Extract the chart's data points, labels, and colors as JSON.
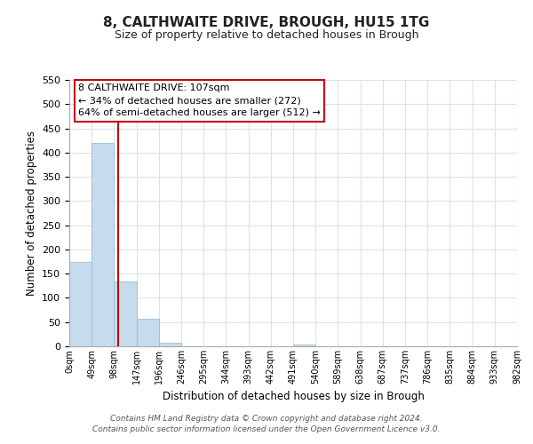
{
  "title": "8, CALTHWAITE DRIVE, BROUGH, HU15 1TG",
  "subtitle": "Size of property relative to detached houses in Brough",
  "xlabel": "Distribution of detached houses by size in Brough",
  "ylabel": "Number of detached properties",
  "bar_values": [
    175,
    420,
    133,
    57,
    8,
    0,
    0,
    0,
    0,
    0,
    3,
    0,
    0,
    0,
    0,
    0,
    0,
    0,
    0,
    0
  ],
  "bar_color": "#c6dcec",
  "bar_edge_color": "#9abcd4",
  "tick_labels": [
    "0sqm",
    "49sqm",
    "98sqm",
    "147sqm",
    "196sqm",
    "246sqm",
    "295sqm",
    "344sqm",
    "393sqm",
    "442sqm",
    "491sqm",
    "540sqm",
    "589sqm",
    "638sqm",
    "687sqm",
    "737sqm",
    "786sqm",
    "835sqm",
    "884sqm",
    "933sqm",
    "982sqm"
  ],
  "ylim": [
    0,
    550
  ],
  "yticks": [
    0,
    50,
    100,
    150,
    200,
    250,
    300,
    350,
    400,
    450,
    500,
    550
  ],
  "property_line_x": 107,
  "property_line_color": "#cc0000",
  "annotation_title": "8 CALTHWAITE DRIVE: 107sqm",
  "annotation_line1": "← 34% of detached houses are smaller (272)",
  "annotation_line2": "64% of semi-detached houses are larger (512) →",
  "footer_line1": "Contains HM Land Registry data © Crown copyright and database right 2024.",
  "footer_line2": "Contains public sector information licensed under the Open Government Licence v3.0.",
  "background_color": "#ffffff",
  "grid_color": "#d8e4ee"
}
